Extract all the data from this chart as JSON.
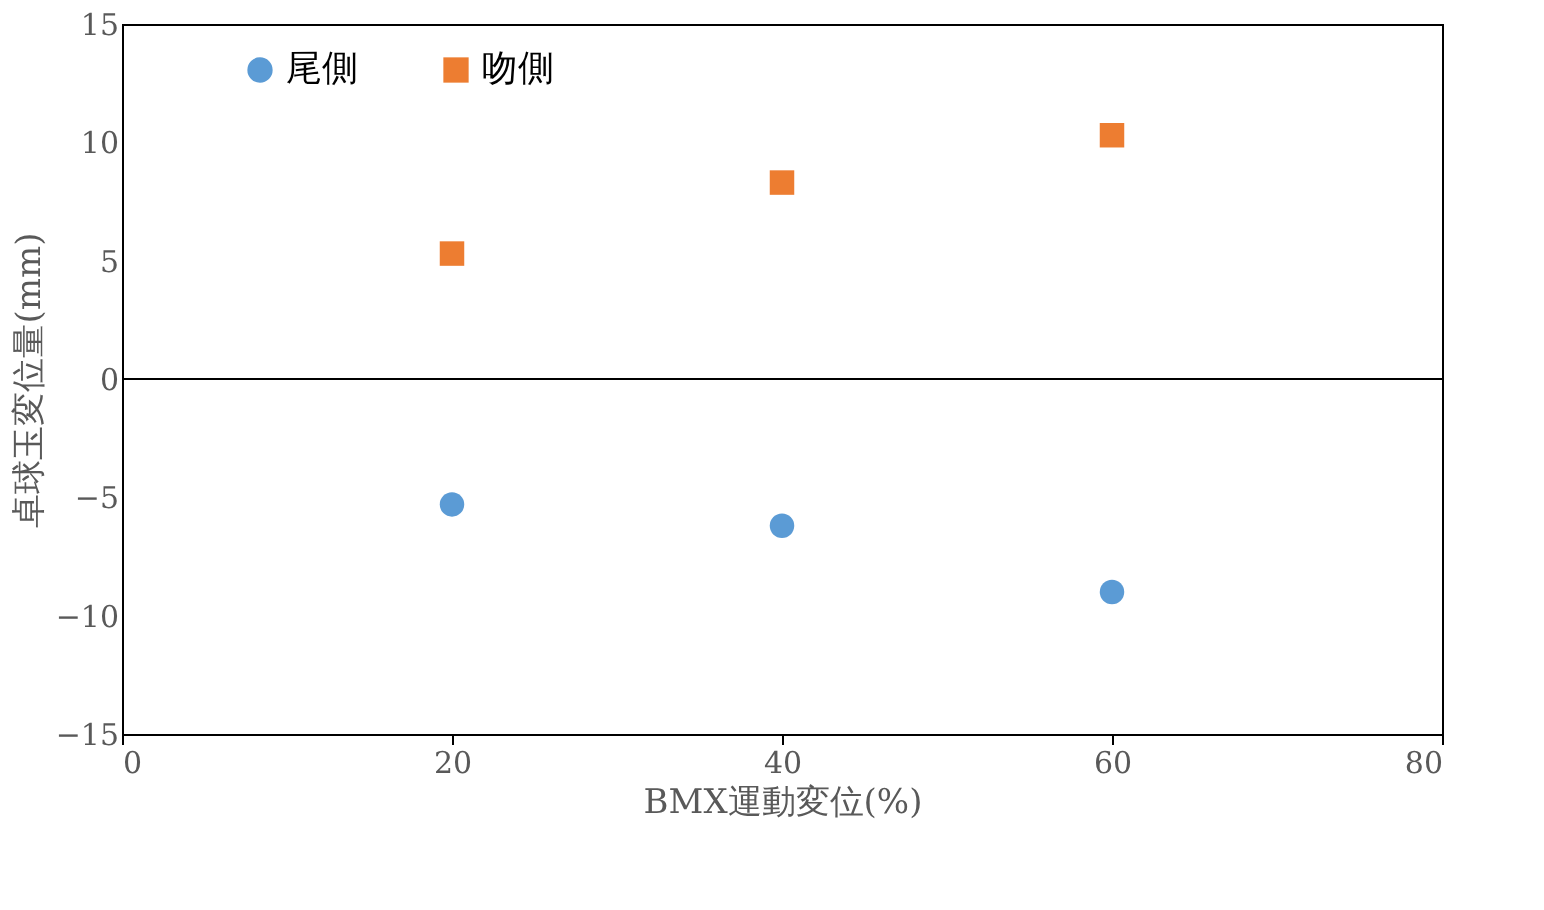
{
  "chart_data": {
    "type": "scatter",
    "xlabel": "BMX運動変位(%)",
    "ylabel": "卓球玉変位量(mm)",
    "xlim": [
      0,
      80
    ],
    "xticks": [
      0,
      20,
      40,
      60,
      80
    ],
    "ylim": [
      -15,
      15
    ],
    "yticks": [
      -15,
      -10,
      -5,
      0,
      5,
      10,
      15
    ],
    "grid": false,
    "legend": "top left",
    "ref_lines": [
      {
        "axis": "y",
        "value": 0
      }
    ],
    "series": [
      {
        "name": "尾側",
        "color": "#5b9bd5",
        "marker": "circle",
        "x": [
          20,
          40,
          60
        ],
        "values": [
          -5.3,
          -6.2,
          -9.0
        ]
      },
      {
        "name": "吻側",
        "color": "#ed7d31",
        "marker": "square",
        "x": [
          20,
          40,
          60
        ],
        "values": [
          5.3,
          8.3,
          10.3
        ]
      }
    ]
  }
}
